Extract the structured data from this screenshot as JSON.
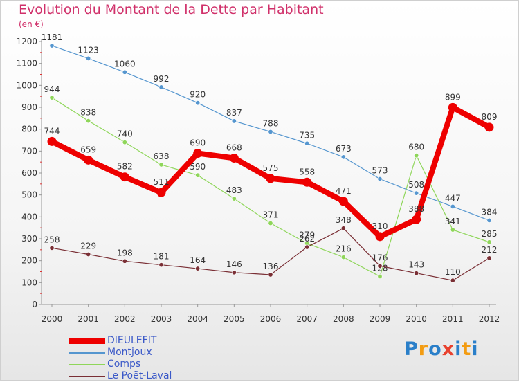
{
  "title": "Evolution du Montant de la Dette par Habitant",
  "subtitle": "(en €)",
  "logo": [
    "P",
    "r",
    "o",
    "x",
    "i",
    "t",
    "i"
  ],
  "logo_colors": [
    "#2a7fc9",
    "#f39c12",
    "#2a7fc9",
    "#e8412e",
    "#2a7fc9",
    "#f39c12",
    "#2a7fc9"
  ],
  "chart_data": {
    "type": "line",
    "categories": [
      "2000",
      "2001",
      "2002",
      "2003",
      "2004",
      "2005",
      "2006",
      "2007",
      "2008",
      "2009",
      "2010",
      "2011",
      "2012"
    ],
    "ylim": [
      0,
      1200
    ],
    "yticks": [
      0,
      100,
      200,
      300,
      400,
      500,
      600,
      700,
      800,
      900,
      1000,
      1100,
      1200
    ],
    "grid": false,
    "legend_position": "bottom-left",
    "series": [
      {
        "name": "Montjoux",
        "color": "#5596cf",
        "values": [
          1181,
          1123,
          1060,
          992,
          920,
          837,
          788,
          735,
          673,
          573,
          508,
          447,
          384
        ]
      },
      {
        "name": "Comps",
        "color": "#8fd65a",
        "values": [
          944,
          838,
          740,
          638,
          590,
          483,
          371,
          279,
          216,
          128,
          680,
          341,
          285
        ]
      },
      {
        "name": "Le Poët-Laval",
        "color": "#7a2f35",
        "values": [
          258,
          229,
          198,
          181,
          164,
          146,
          136,
          262,
          348,
          176,
          143,
          110,
          212
        ]
      },
      {
        "name": "DIEULEFIT",
        "color": "#ee0000",
        "values": [
          744,
          659,
          582,
          511,
          690,
          668,
          575,
          558,
          471,
          310,
          388,
          899,
          809
        ]
      }
    ],
    "legend_order": [
      "DIEULEFIT",
      "Montjoux",
      "Comps",
      "Le Poët-Laval"
    ]
  }
}
